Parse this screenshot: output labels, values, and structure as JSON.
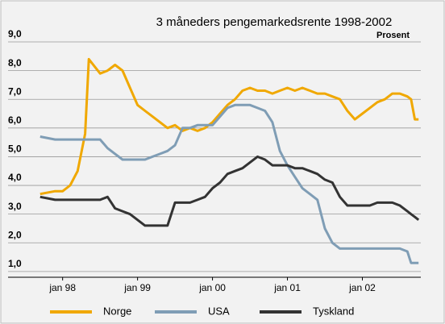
{
  "chart_data": {
    "type": "line",
    "title": "3 måneders pengemarkedsrente 1998-2002",
    "subtitle": "Prosent",
    "x": [
      1997.7,
      1997.9,
      1998.0,
      1998.1,
      1998.2,
      1998.3,
      1998.35,
      1998.5,
      1998.6,
      1998.7,
      1998.8,
      1998.9,
      1999.0,
      1999.1,
      1999.2,
      1999.3,
      1999.4,
      1999.5,
      1999.6,
      1999.7,
      1999.8,
      1999.9,
      2000.0,
      2000.1,
      2000.2,
      2000.3,
      2000.4,
      2000.5,
      2000.6,
      2000.7,
      2000.8,
      2000.9,
      2001.0,
      2001.1,
      2001.2,
      2001.3,
      2001.4,
      2001.5,
      2001.6,
      2001.7,
      2001.8,
      2001.9,
      2002.0,
      2002.1,
      2002.2,
      2002.3,
      2002.4,
      2002.5,
      2002.6,
      2002.65,
      2002.7,
      2002.75
    ],
    "series": [
      {
        "name": "Norge",
        "color": "#f0a800",
        "values": [
          3.7,
          3.8,
          3.8,
          4.0,
          4.5,
          5.8,
          8.4,
          7.9,
          8.0,
          8.2,
          8.0,
          7.4,
          6.8,
          6.6,
          6.4,
          6.2,
          6.0,
          6.1,
          5.9,
          6.0,
          5.9,
          6.0,
          6.2,
          6.5,
          6.8,
          7.0,
          7.3,
          7.4,
          7.3,
          7.3,
          7.2,
          7.3,
          7.4,
          7.3,
          7.4,
          7.3,
          7.2,
          7.2,
          7.1,
          7.0,
          6.6,
          6.3,
          6.5,
          6.7,
          6.9,
          7.0,
          7.2,
          7.2,
          7.1,
          7.0,
          6.3,
          6.3
        ]
      },
      {
        "name": "USA",
        "color": "#7f9db5",
        "values": [
          5.7,
          5.6,
          5.6,
          5.6,
          5.6,
          5.6,
          5.6,
          5.6,
          5.3,
          5.1,
          4.9,
          4.9,
          4.9,
          4.9,
          5.0,
          5.1,
          5.2,
          5.4,
          6.0,
          6.0,
          6.1,
          6.1,
          6.1,
          6.4,
          6.7,
          6.8,
          6.8,
          6.8,
          6.7,
          6.6,
          6.2,
          5.2,
          4.7,
          4.3,
          3.9,
          3.7,
          3.5,
          2.5,
          2.0,
          1.8,
          1.8,
          1.8,
          1.8,
          1.8,
          1.8,
          1.8,
          1.8,
          1.8,
          1.7,
          1.3,
          1.3,
          1.3
        ]
      },
      {
        "name": "Tyskland",
        "color": "#333333",
        "values": [
          3.6,
          3.5,
          3.5,
          3.5,
          3.5,
          3.5,
          3.5,
          3.5,
          3.6,
          3.2,
          3.1,
          3.0,
          2.8,
          2.6,
          2.6,
          2.6,
          2.6,
          3.4,
          3.4,
          3.4,
          3.5,
          3.6,
          3.9,
          4.1,
          4.4,
          4.5,
          4.6,
          4.8,
          5.0,
          4.9,
          4.7,
          4.7,
          4.7,
          4.6,
          4.6,
          4.5,
          4.4,
          4.2,
          4.1,
          3.6,
          3.3,
          3.3,
          3.3,
          3.3,
          3.4,
          3.4,
          3.4,
          3.3,
          3.1,
          3.0,
          2.9,
          2.8
        ]
      }
    ],
    "xlim": [
      1997.67,
      2002.78
    ],
    "xticks": [
      {
        "value": 1998,
        "label": "jan 98"
      },
      {
        "value": 1999,
        "label": "jan 99"
      },
      {
        "value": 2000,
        "label": "jan 00"
      },
      {
        "value": 2001,
        "label": "jan 01"
      },
      {
        "value": 2002,
        "label": "jan 02"
      }
    ],
    "ylim": [
      0.8,
      9.0
    ],
    "yticks": [
      {
        "value": 1,
        "label": "1,0"
      },
      {
        "value": 2,
        "label": "2,0"
      },
      {
        "value": 3,
        "label": "3,0"
      },
      {
        "value": 4,
        "label": "4,0"
      },
      {
        "value": 5,
        "label": "5,0"
      },
      {
        "value": 6,
        "label": "6,0"
      },
      {
        "value": 7,
        "label": "7,0"
      },
      {
        "value": 8,
        "label": "8,0"
      },
      {
        "value": 9,
        "label": "9,0"
      }
    ],
    "grid": true
  }
}
